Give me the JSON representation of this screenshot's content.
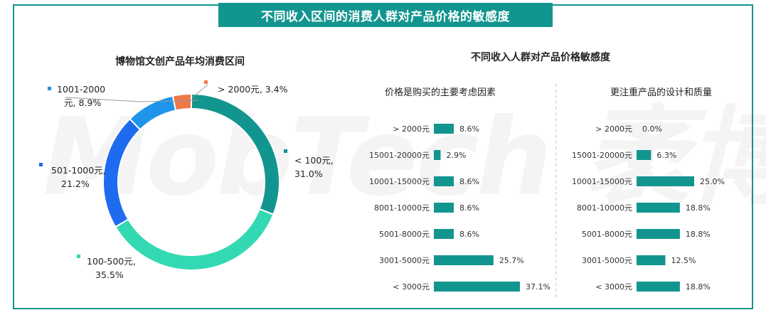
{
  "banner_title": "不同收入区间的消费人群对产品价格的敏感度",
  "watermark": "MobTech 袤博",
  "chart_data": [
    {
      "type": "pie",
      "title": "博物馆文创产品年均消费区间",
      "slices": [
        {
          "category": "< 100元",
          "value": 31.0,
          "color": "#13958f",
          "label_lines": [
            "< 100元,",
            "31.0%"
          ]
        },
        {
          "category": "100-500元",
          "value": 35.5,
          "color": "#33d9b2",
          "label_lines": [
            "100-500元,",
            "35.5%"
          ]
        },
        {
          "category": "501-1000元",
          "value": 21.2,
          "color": "#1e6bf0",
          "label_lines": [
            "501-1000元,",
            "21.2%"
          ]
        },
        {
          "category": "1001-2000元",
          "value": 8.9,
          "color": "#1e94ea",
          "label_lines": [
            "1001-2000",
            "元, 8.9%"
          ]
        },
        {
          "category": "> 2000元",
          "value": 3.4,
          "color": "#f07848",
          "label_lines": [
            "> 2000元, 3.4%"
          ]
        }
      ]
    },
    {
      "type": "bar",
      "orientation": "horizontal",
      "title": "不同收入人群对产品价格敏感度",
      "subtitle": "价格是购买的主要考虑因素",
      "categories": [
        "> 2000元",
        "15001-20000元",
        "10001-15000元",
        "8001-10000元",
        "5001-8000元",
        "3001-5000元",
        "< 3000元"
      ],
      "values": [
        8.6,
        2.9,
        8.6,
        8.6,
        8.6,
        25.7,
        37.1
      ],
      "value_labels": [
        "8.6%",
        "2.9%",
        "8.6%",
        "8.6%",
        "8.6%",
        "25.7%",
        "37.1%"
      ],
      "color": "#13958f"
    },
    {
      "type": "bar",
      "orientation": "horizontal",
      "subtitle": "更注重产品的设计和质量",
      "categories": [
        "> 2000元",
        "15001-20000元",
        "10001-15000元",
        "8001-10000元",
        "5001-8000元",
        "3001-5000元",
        "< 3000元"
      ],
      "values": [
        0.0,
        6.3,
        25.0,
        18.8,
        18.8,
        12.5,
        18.8
      ],
      "value_labels": [
        "0.0%",
        "6.3%",
        "25.0%",
        "18.8%",
        "18.8%",
        "12.5%",
        "18.8%"
      ],
      "color": "#13958f"
    }
  ]
}
